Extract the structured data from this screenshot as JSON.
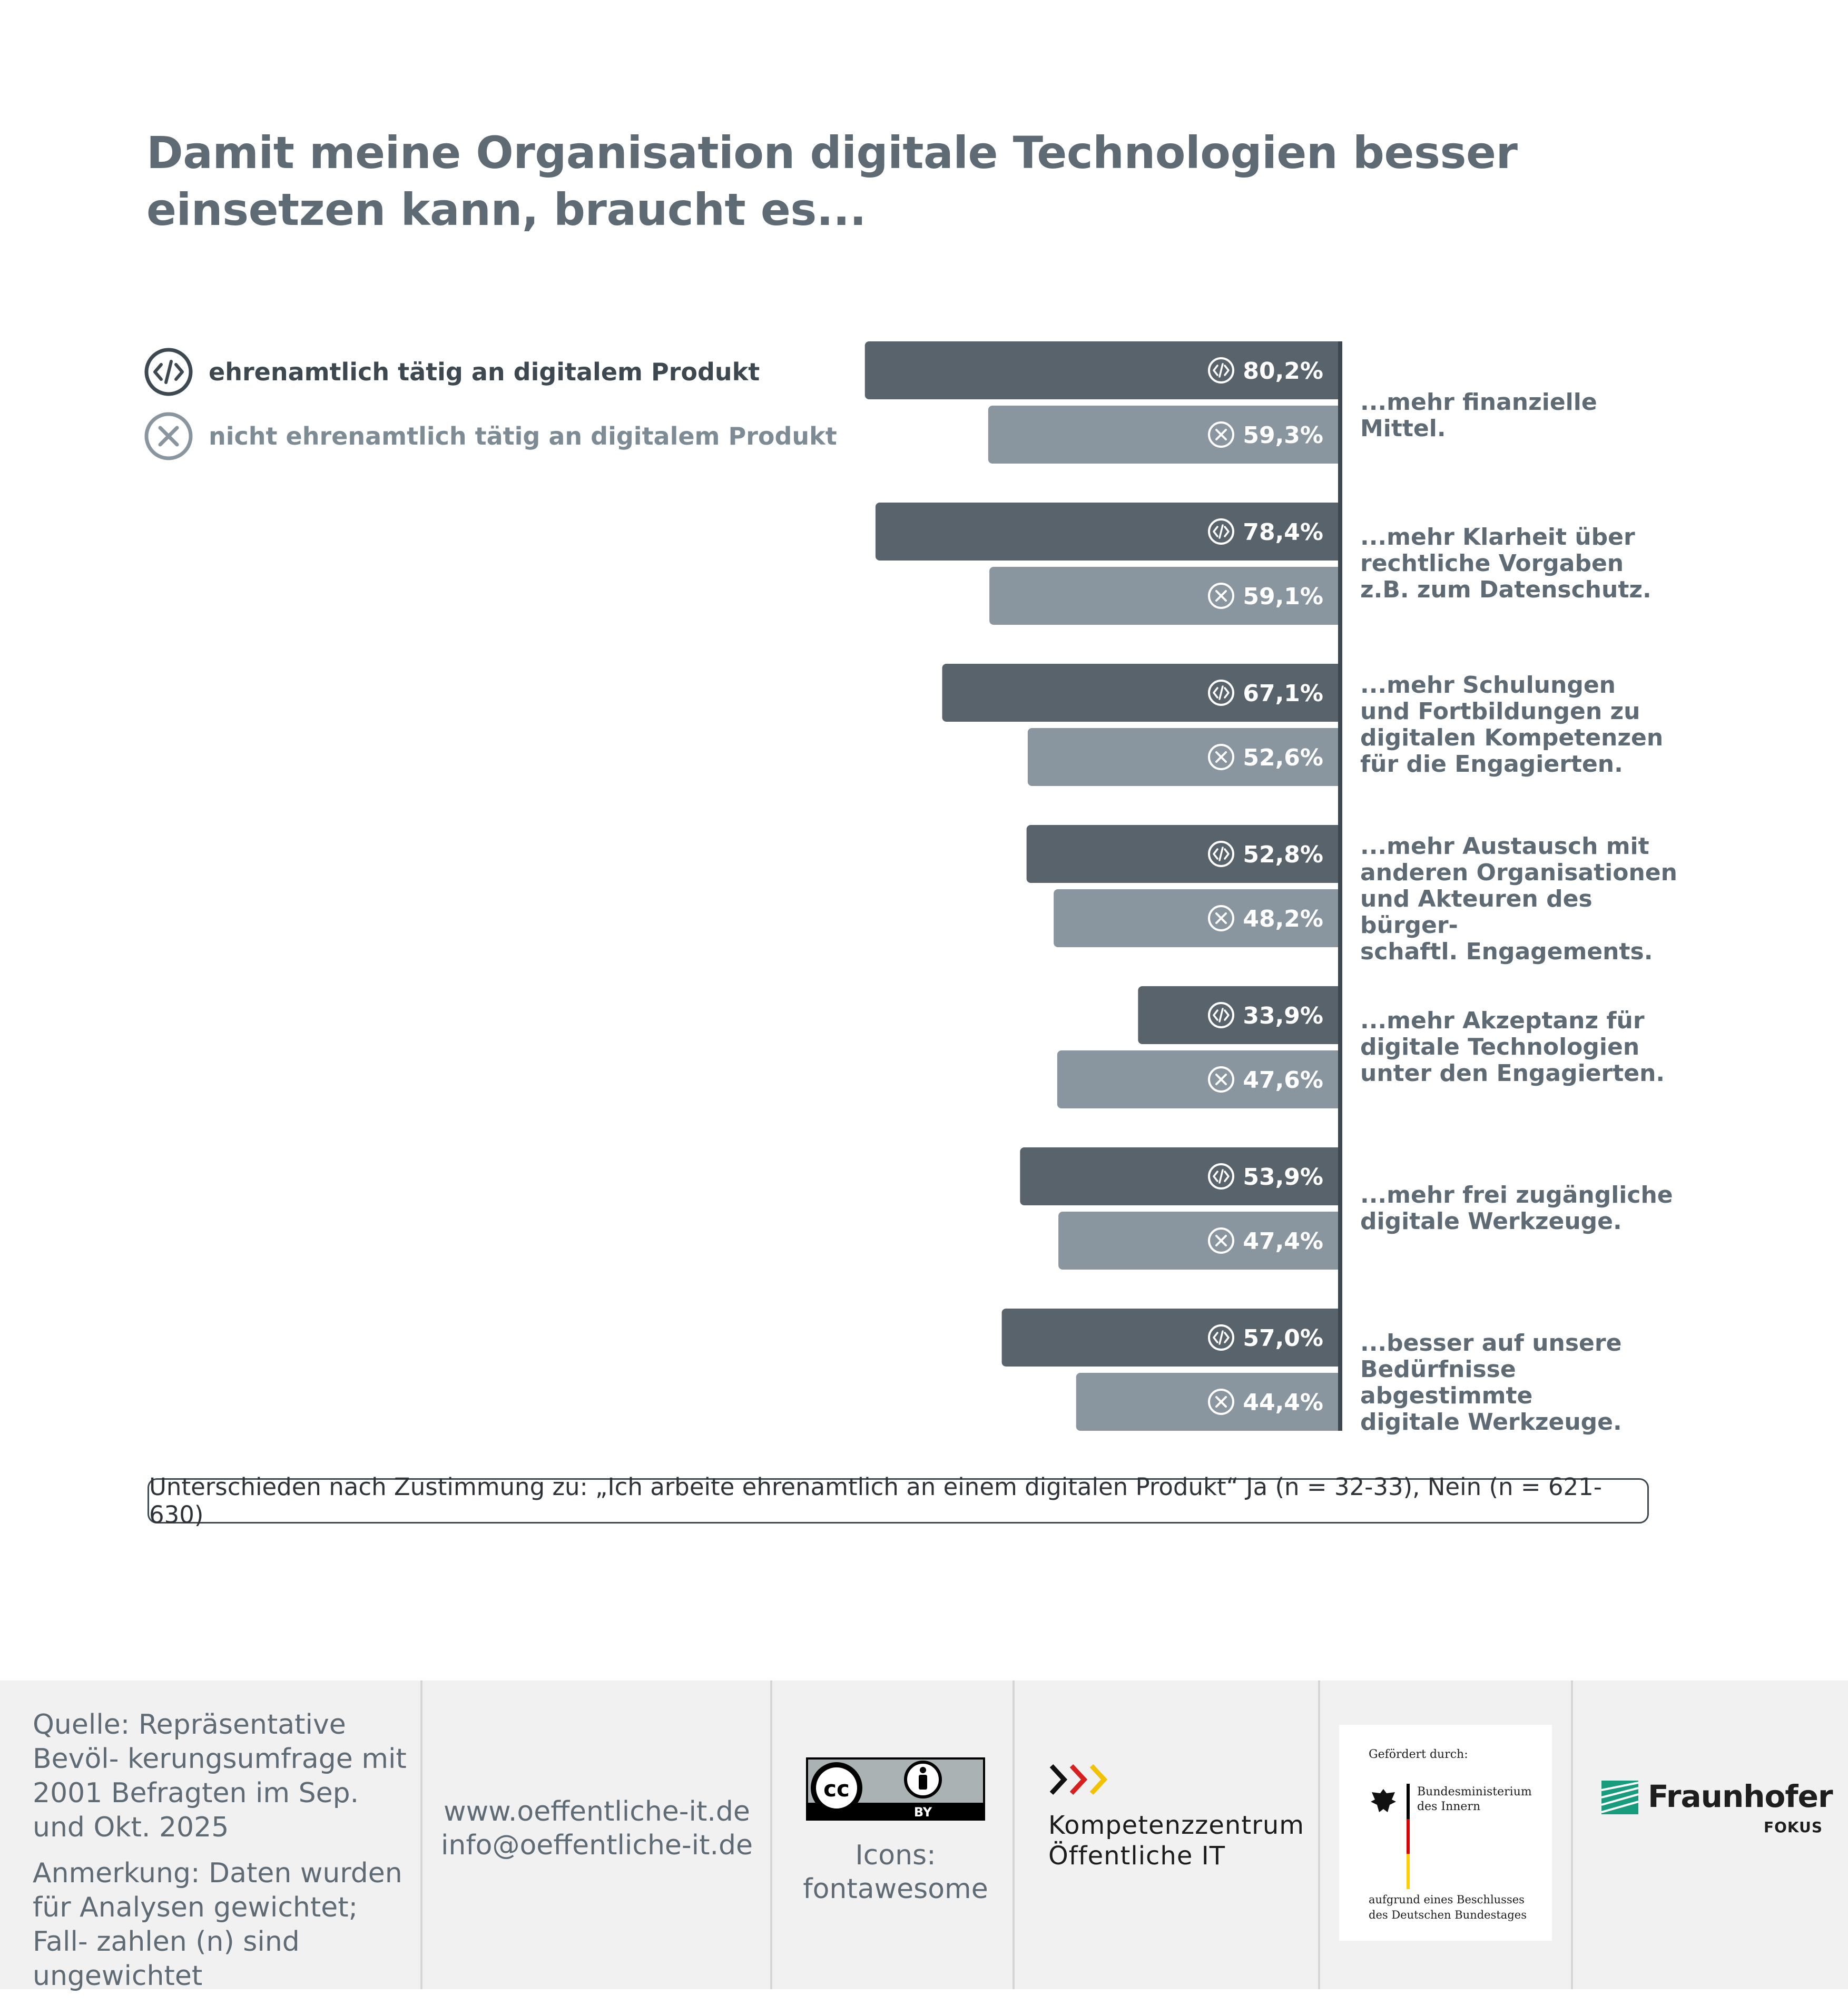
{
  "title": "Damit meine Organisation digitale Technologien besser einsetzen kann, braucht es...",
  "legend": {
    "yes": "ehrenamtlich tätig an digitalem Produkt",
    "no": "nicht ehrenamtlich tätig an digitalem Produkt"
  },
  "icons": {
    "yes": "code-circle-icon",
    "no": "x-circle-icon"
  },
  "colors": {
    "yes": "#59636c",
    "no": "#8a969f",
    "title": "#5e6b75"
  },
  "chart_data": {
    "type": "bar",
    "orientation": "horizontal-leftward",
    "categories": [
      "...mehr finanzielle Mittel.",
      "...mehr Klarheit über\nrechtliche Vorgaben\nz.B. zum Datenschutz.",
      "...mehr Schulungen\nund Fortbildungen zu\ndigitalen Kompetenzen\nfür die Engagierten.",
      "...mehr Austausch mit\nanderen Organisationen\nund Akteuren des bürger-\nschaftl. Engagements.",
      "...mehr Akzeptanz für\ndigitale Technologien\nunter den Engagierten.",
      "...mehr frei zugängliche\ndigitale Werkzeuge.",
      "...besser auf unsere\nBedürfnisse abgestimmte\ndigitale Werkzeuge."
    ],
    "series": [
      {
        "name": "ehrenamtlich tätig an digitalem Produkt",
        "values": [
          80.2,
          78.4,
          67.1,
          52.8,
          33.9,
          53.9,
          57.0
        ],
        "labels": [
          "80,2%",
          "78,4%",
          "67,1%",
          "52,8%",
          "33,9%",
          "53,9%",
          "57,0%"
        ]
      },
      {
        "name": "nicht ehrenamtlich tätig an digitalem Produkt",
        "values": [
          59.3,
          59.1,
          52.6,
          48.2,
          47.6,
          47.4,
          44.4
        ],
        "labels": [
          "59,3%",
          "59,1%",
          "52,6%",
          "48,2%",
          "47,6%",
          "47,4%",
          "44,4%"
        ]
      }
    ],
    "unit": "%",
    "xlim": [
      0,
      100
    ],
    "title": "Damit meine Organisation digitale Technologien besser einsetzen kann, braucht es..."
  },
  "note": "Unterschieden nach Zustimmung zu: „Ich arbeite ehrenamtlich an einem digitalen Produkt“ Ja (n = 32-33), Nein (n = 621-630)",
  "footer": {
    "source": "Quelle: Repräsentative Bevöl-\nkerungsumfrage mit 2001 Befragten im Sep. und Okt. 2025",
    "remark": "Anmerkung: Daten wurden für Analysen gewichtet; Fall-\nzahlen (n) sind ungewichtet",
    "website": "www.oeffentliche-it.de",
    "email": "info@oeffentliche-it.de",
    "cc_badge": "BY",
    "icons_credit": "Icons:\nfontawesome",
    "kompetenz_line1": "Kompetenzzentrum",
    "kompetenz_line2": "Öffentliche IT",
    "bmi_gefoerdert": "Gefördert durch:",
    "bmi_name": "Bundesministerium\ndes Innern",
    "bmi_beschluss": "aufgrund eines Beschlusses\ndes Deutschen Bundestages",
    "fraunhofer": "Fraunhofer",
    "fokus": "FOKUS"
  }
}
